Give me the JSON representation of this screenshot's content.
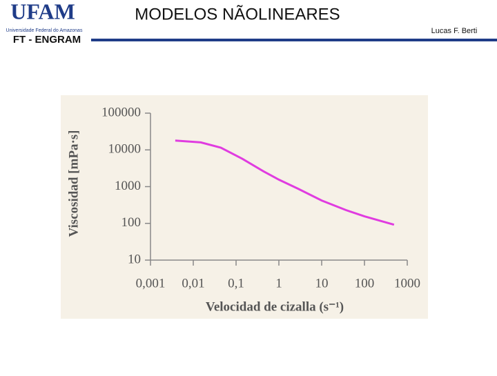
{
  "header": {
    "logo": "UFAM",
    "university": "Universidade Federal do Amazonas",
    "department": "FT - ENGRAM",
    "title": "MODELOS NÃOLINEARES",
    "author": "Lucas F. Berti"
  },
  "chart_data": {
    "type": "line",
    "x_label": "Velocidad de cizalla (s⁻¹)",
    "y_label": "Viscosidad [mPa·s]",
    "x": [
      0.0038,
      0.015,
      0.044,
      0.14,
      0.44,
      1,
      2.8,
      10,
      37,
      100,
      490
    ],
    "series": [
      {
        "color": "#e03ce0",
        "values": [
          18000,
          16000,
          11500,
          5700,
          2600,
          1550,
          880,
          420,
          230,
          155,
          92
        ]
      }
    ],
    "log_x": true,
    "log_y": true,
    "xlim": [
      0.001,
      1000
    ],
    "ylim": [
      10,
      100000
    ],
    "xticks": [
      {
        "value": 0.001,
        "label": "0,001"
      },
      {
        "value": 0.01,
        "label": "0,01"
      },
      {
        "value": 0.1,
        "label": "0,1"
      },
      1,
      10,
      100,
      1000
    ],
    "yticks": [
      10,
      100,
      1000,
      10000,
      100000
    ],
    "grid": false
  }
}
